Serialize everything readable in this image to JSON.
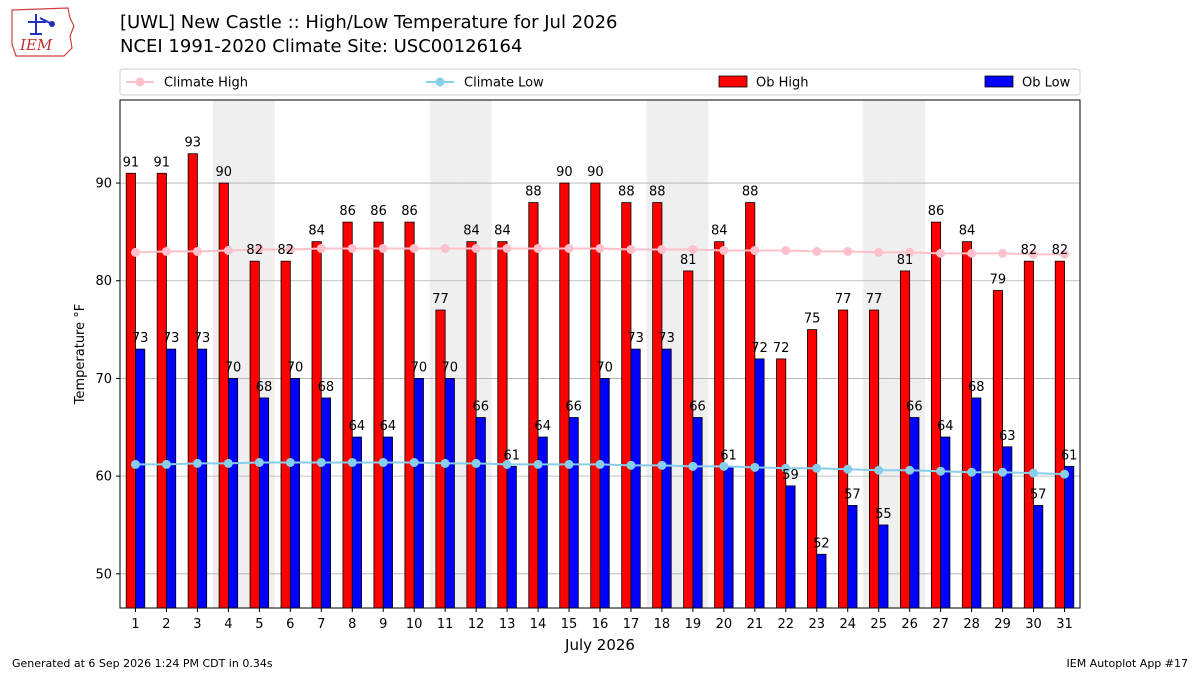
{
  "header": {
    "title_line1": "[UWL] New Castle :: High/Low Temperature for Jul 2026",
    "title_line2": "NCEI 1991-2020 Climate Site: USC00126164",
    "logo_text": "IEM"
  },
  "footer": {
    "generated": "Generated at 6 Sep 2026 1:24 PM CDT in 0.34s",
    "app": "IEM Autoplot App #17"
  },
  "colors": {
    "ob_high": "#ff0000",
    "ob_low": "#0000ff",
    "climate_high": "#ffc0cb",
    "climate_low": "#87ceeb",
    "weekend_shade": "#efefef",
    "grid": "#b0b0b0"
  },
  "chart_data": {
    "type": "bar",
    "xlabel": "July 2026",
    "ylabel": "Temperature °F",
    "ylim": [
      46.5,
      98.5
    ],
    "yticks": [
      50,
      60,
      70,
      80,
      90
    ],
    "grid": "horizontal",
    "legend_position": "top",
    "categories": [
      "1",
      "2",
      "3",
      "4",
      "5",
      "6",
      "7",
      "8",
      "9",
      "10",
      "11",
      "12",
      "13",
      "14",
      "15",
      "16",
      "17",
      "18",
      "19",
      "20",
      "21",
      "22",
      "23",
      "24",
      "25",
      "26",
      "27",
      "28",
      "29",
      "30",
      "31"
    ],
    "shaded_days": [
      4,
      5,
      11,
      12,
      18,
      19,
      25,
      26
    ],
    "series": [
      {
        "name": "Ob High",
        "kind": "bar",
        "values": [
          91,
          91,
          93,
          90,
          82,
          82,
          84,
          86,
          86,
          86,
          77,
          84,
          84,
          88,
          90,
          90,
          88,
          88,
          81,
          84,
          88,
          72,
          75,
          77,
          77,
          81,
          86,
          84,
          79,
          82,
          82
        ]
      },
      {
        "name": "Ob Low",
        "kind": "bar",
        "values": [
          73,
          73,
          73,
          70,
          68,
          70,
          68,
          64,
          64,
          70,
          70,
          66,
          61,
          64,
          66,
          70,
          73,
          73,
          66,
          61,
          72,
          59,
          52,
          57,
          55,
          66,
          64,
          68,
          63,
          57,
          61
        ]
      },
      {
        "name": "Climate High",
        "kind": "line",
        "values": [
          82.9,
          83.0,
          83.0,
          83.1,
          83.2,
          83.2,
          83.3,
          83.3,
          83.3,
          83.3,
          83.3,
          83.3,
          83.3,
          83.3,
          83.3,
          83.3,
          83.2,
          83.2,
          83.2,
          83.1,
          83.1,
          83.1,
          83.0,
          83.0,
          82.9,
          82.9,
          82.8,
          82.8,
          82.8,
          82.7,
          82.7
        ]
      },
      {
        "name": "Climate Low",
        "kind": "line",
        "values": [
          61.2,
          61.2,
          61.3,
          61.3,
          61.4,
          61.4,
          61.4,
          61.4,
          61.4,
          61.4,
          61.3,
          61.3,
          61.2,
          61.2,
          61.2,
          61.2,
          61.1,
          61.1,
          61.0,
          61.0,
          60.9,
          60.8,
          60.8,
          60.7,
          60.6,
          60.6,
          60.5,
          60.4,
          60.4,
          60.3,
          60.2
        ]
      }
    ]
  }
}
